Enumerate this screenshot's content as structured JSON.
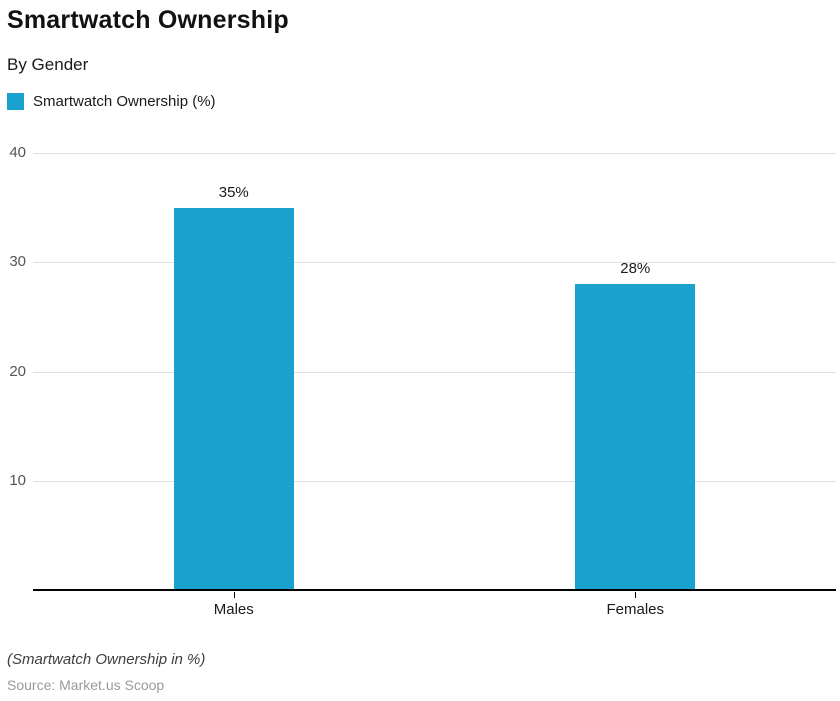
{
  "chart_data": {
    "type": "bar",
    "title": "Smartwatch Ownership",
    "subtitle": "By Gender",
    "series_name": "Smartwatch Ownership (%)",
    "categories": [
      "Males",
      "Females"
    ],
    "values": [
      35,
      28
    ],
    "value_labels": [
      "35%",
      "28%"
    ],
    "ylim": [
      0,
      40
    ],
    "yticks": [
      10,
      20,
      30,
      40
    ],
    "bar_color": "#1aa2ce",
    "gridline_color": "#e0e0e0",
    "grid": true,
    "legend_position": "top-left"
  },
  "footer": {
    "note": "(Smartwatch Ownership in %)",
    "source": "Source: Market.us Scoop"
  }
}
